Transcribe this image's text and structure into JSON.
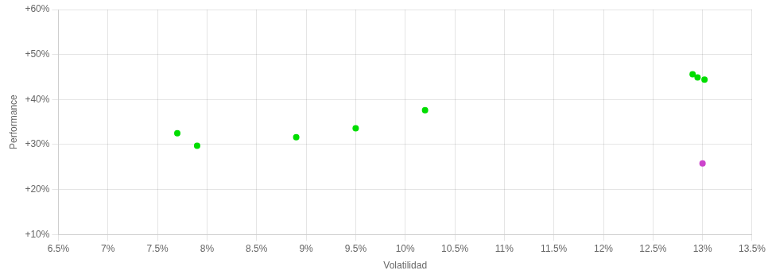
{
  "chart_data": {
    "type": "scatter",
    "xlabel": "Volatilidad",
    "ylabel": "Performance",
    "xlim": [
      0.065,
      0.135
    ],
    "ylim": [
      0.1,
      0.6
    ],
    "xticks": [
      {
        "value": 0.065,
        "label": "6.5%"
      },
      {
        "value": 0.07,
        "label": "7%"
      },
      {
        "value": 0.075,
        "label": "7.5%"
      },
      {
        "value": 0.08,
        "label": "8%"
      },
      {
        "value": 0.085,
        "label": "8.5%"
      },
      {
        "value": 0.09,
        "label": "9%"
      },
      {
        "value": 0.095,
        "label": "9.5%"
      },
      {
        "value": 0.1,
        "label": "10%"
      },
      {
        "value": 0.105,
        "label": "10.5%"
      },
      {
        "value": 0.11,
        "label": "11%"
      },
      {
        "value": 0.115,
        "label": "11.5%"
      },
      {
        "value": 0.12,
        "label": "12%"
      },
      {
        "value": 0.125,
        "label": "12.5%"
      },
      {
        "value": 0.13,
        "label": "13%"
      },
      {
        "value": 0.135,
        "label": "13.5%"
      }
    ],
    "yticks": [
      {
        "value": 0.1,
        "label": "+10%"
      },
      {
        "value": 0.2,
        "label": "+20%"
      },
      {
        "value": 0.3,
        "label": "+30%"
      },
      {
        "value": 0.4,
        "label": "+40%"
      },
      {
        "value": 0.5,
        "label": "+50%"
      },
      {
        "value": 0.6,
        "label": "+60%"
      }
    ],
    "grid": true,
    "series": [
      {
        "color": "#00dd00",
        "x": [
          0.077,
          0.079,
          0.089,
          0.095,
          0.102,
          0.129,
          0.1295,
          0.1302
        ],
        "values": [
          0.325,
          0.297,
          0.316,
          0.336,
          0.376,
          0.456,
          0.449,
          0.444
        ]
      },
      {
        "color": "#cc44cc",
        "x": [
          0.13
        ],
        "values": [
          0.258
        ]
      }
    ]
  }
}
